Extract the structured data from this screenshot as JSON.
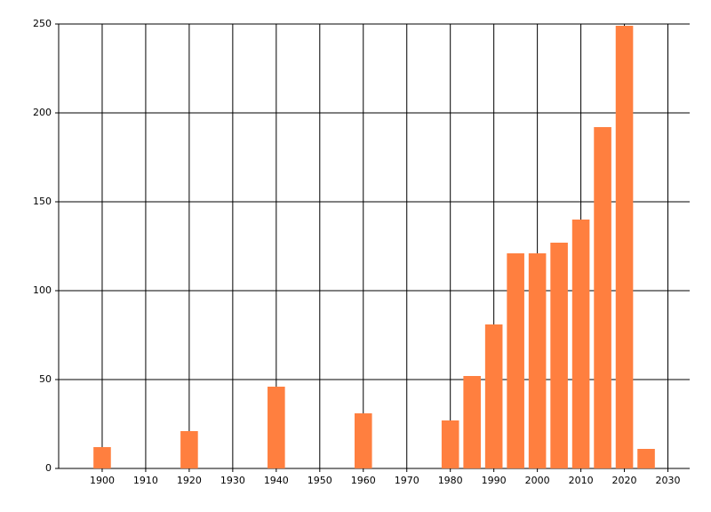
{
  "chart_data": {
    "type": "bar",
    "x": [
      1900,
      1920,
      1940,
      1960,
      1980,
      1985,
      1990,
      1995,
      2000,
      2005,
      2010,
      2015,
      2020,
      2025
    ],
    "values": [
      12,
      21,
      46,
      31,
      27,
      52,
      81,
      121,
      121,
      127,
      140,
      192,
      249,
      11
    ],
    "color": "#ff7f3f",
    "xlim": [
      1890,
      2035
    ],
    "xticks": [
      1900,
      1910,
      1920,
      1930,
      1940,
      1950,
      1960,
      1970,
      1980,
      1990,
      2000,
      2010,
      2020,
      2030
    ],
    "ylim": [
      0,
      250
    ],
    "yticks": [
      0,
      50,
      100,
      150,
      200,
      250
    ],
    "grid": true
  }
}
